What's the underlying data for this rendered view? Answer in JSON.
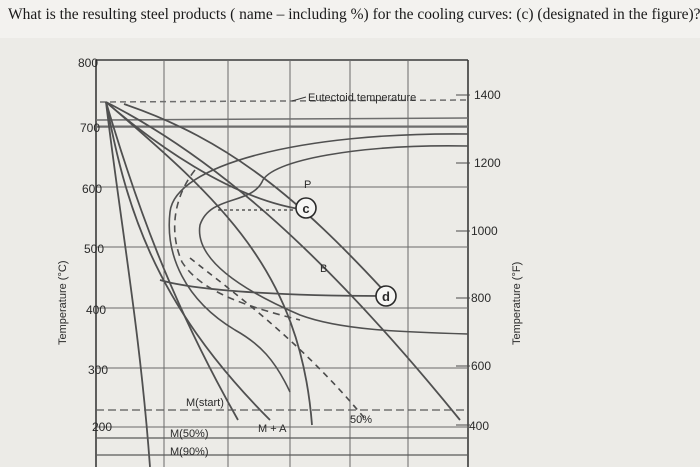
{
  "question": "What is the resulting steel products ( name – including %) for the cooling curves: (c) (designated in the figure)?",
  "diagram": {
    "left_axis_label": "Temperature (°C)",
    "right_axis_label": "Temperature (°F)",
    "celsius_ticks": [
      "800",
      "700",
      "600",
      "500",
      "400",
      "300",
      "200"
    ],
    "fahrenheit_ticks": [
      "1400",
      "1200",
      "1000",
      "800",
      "600",
      "400"
    ],
    "eutectoid_label": "Eutectoid temperature",
    "region_labels": {
      "pearlite": "P",
      "bainite": "B",
      "m_start": "M(start)",
      "m_plus_a": "M + A",
      "m50": "M(50%)",
      "m90": "M(90%)",
      "fifty_percent": "50%"
    },
    "curve_markers": {
      "c": "c",
      "d": "d"
    }
  }
}
